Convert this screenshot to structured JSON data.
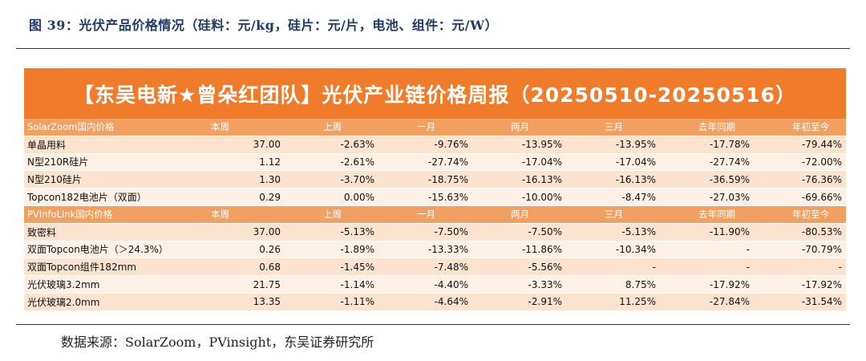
{
  "caption": "图 39：光伏产品价格情况（硅料：元/kg，硅片：元/片，电池、组件：元/W）",
  "banner_title": "【东吴电新★曾朵红团队】光伏产业链价格周报（20250510-20250516）",
  "source": "数据来源：SolarZoom，PVinsight，东吴证券研究所",
  "sections": [
    {
      "header": [
        "SolarZoom国内价格",
        "本周",
        "上周",
        "一月",
        "两月",
        "三月",
        "去年同期",
        "年初至今"
      ],
      "rows": [
        [
          "单晶用料",
          "37.00",
          "-2.63%",
          "-9.76%",
          "-13.95%",
          "-13.95%",
          "-17.78%",
          "-79.44%"
        ],
        [
          "N型210R硅片",
          "1.12",
          "-2.61%",
          "-27.74%",
          "-17.04%",
          "-17.04%",
          "-27.74%",
          "-72.00%"
        ],
        [
          "N型210硅片",
          "1.30",
          "-3.70%",
          "-18.75%",
          "-16.13%",
          "-16.13%",
          "-36.59%",
          "-76.36%"
        ],
        [
          "Topcon182电池片（双面）",
          "0.29",
          "0.00%",
          "-15.63%",
          "-10.00%",
          "-8.47%",
          "-27.03%",
          "-69.66%"
        ]
      ]
    },
    {
      "header": [
        "PVInfoLink国内价格",
        "本周",
        "上周",
        "一月",
        "两月",
        "三月",
        "去年同期",
        "年初至今"
      ],
      "rows": [
        [
          "致密料",
          "37.00",
          "-5.13%",
          "-7.50%",
          "-7.50%",
          "-5.13%",
          "-11.90%",
          "-80.53%"
        ],
        [
          "双面Topcon电池片（＞24.3%）",
          "0.26",
          "-1.89%",
          "-13.33%",
          "-11.86%",
          "-10.34%",
          "-",
          "-70.79%"
        ],
        [
          "双面Topcon组件182mm",
          "0.68",
          "-1.45%",
          "-7.48%",
          "-5.56%",
          "-",
          "-",
          "-"
        ],
        [
          "光伏玻璃3.2mm",
          "21.75",
          "-1.14%",
          "-4.40%",
          "-3.33%",
          "8.75%",
          "-17.92%",
          "-17.92%"
        ],
        [
          "光伏玻璃2.0mm",
          "13.35",
          "-1.11%",
          "-4.64%",
          "-2.91%",
          "11.25%",
          "-27.84%",
          "-31.54%"
        ]
      ]
    }
  ],
  "colors": {
    "banner": "#f07c2b",
    "header_row": "#f2a061",
    "row_a": "#fbe3d0",
    "row_b": "#fdf1e7",
    "caption_text": "#1f3a6b"
  }
}
